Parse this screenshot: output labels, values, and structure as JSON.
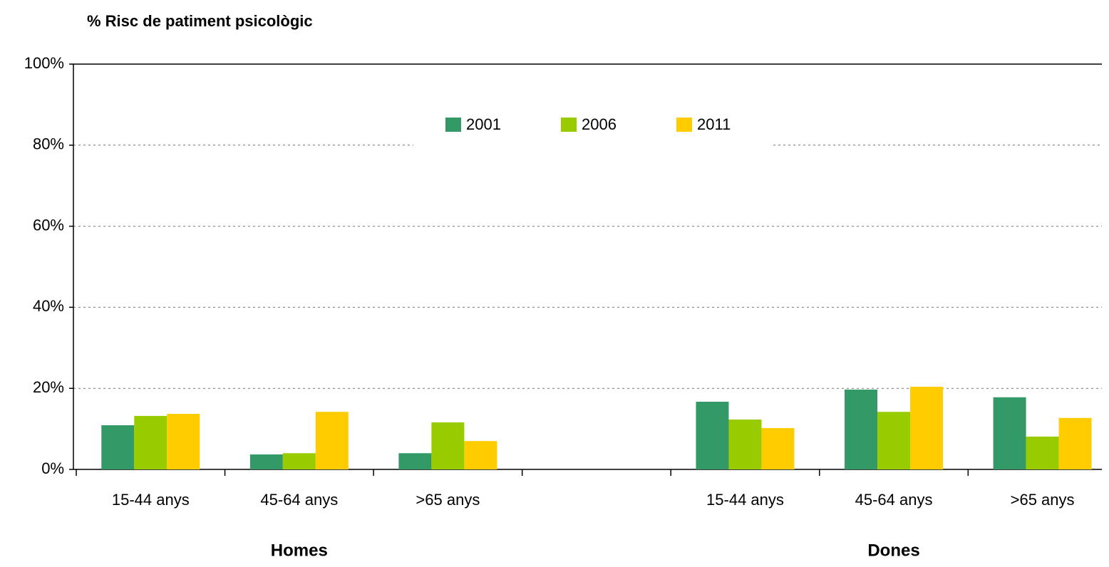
{
  "chart_data": {
    "type": "bar",
    "title": "% Risc de patiment psicològic",
    "categories": [
      "15-44 anys",
      "45-64 anys",
      ">65 anys",
      null,
      "15-44 anys",
      "45-64 anys",
      ">65 anys"
    ],
    "group_labels": [
      "Homes",
      "Dones"
    ],
    "series": [
      {
        "name": "2001",
        "color": "#339966",
        "values": [
          10.9,
          3.7,
          4.0,
          null,
          16.7,
          19.7,
          17.8
        ]
      },
      {
        "name": "2006",
        "color": "#99cc00",
        "values": [
          13.2,
          4.0,
          11.6,
          null,
          12.3,
          14.2,
          8.1
        ]
      },
      {
        "name": "2011",
        "color": "#ffcc00",
        "values": [
          13.7,
          14.2,
          7.0,
          null,
          10.2,
          20.4,
          12.7
        ]
      }
    ],
    "ylim": [
      0,
      100
    ],
    "yticks": [
      {
        "value": 0,
        "label": "0%"
      },
      {
        "value": 20,
        "label": "20%"
      },
      {
        "value": 40,
        "label": "40%"
      },
      {
        "value": 60,
        "label": "60%"
      },
      {
        "value": 80,
        "label": "80%"
      },
      {
        "value": 100,
        "label": "100%"
      }
    ],
    "grid": true
  }
}
